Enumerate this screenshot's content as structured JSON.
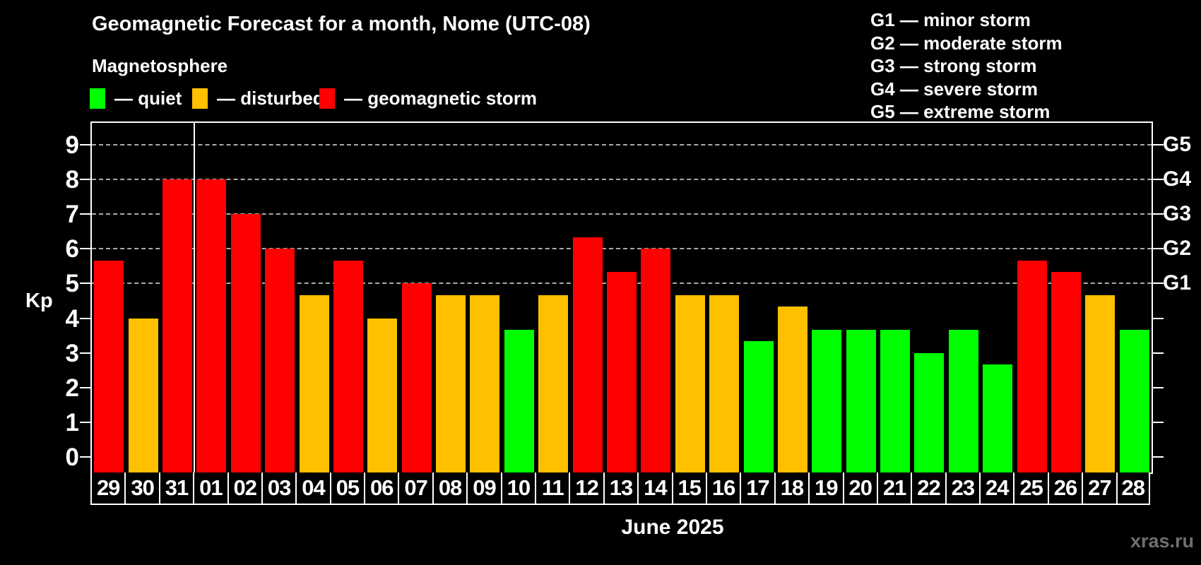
{
  "header": {
    "title": "Geomagnetic Forecast for a month, Nome (UTC-08)",
    "subtitle": "Magnetosphere"
  },
  "legend": {
    "items": [
      {
        "label": "— quiet",
        "level": "quiet",
        "color": "#00ff00"
      },
      {
        "label": "— disturbed",
        "level": "disturbed",
        "color": "#ffc000"
      },
      {
        "label": "— geomagnetic storm",
        "level": "storm",
        "color": "#ff0000"
      }
    ]
  },
  "g_scale_legend": {
    "lines": [
      "G1 — minor storm",
      "G2 — moderate storm",
      "G3 — strong storm",
      "G4 — severe storm",
      "G5 — extreme storm"
    ]
  },
  "chart_data": {
    "type": "bar",
    "title": "Geomagnetic Forecast for a month, Nome (UTC-08)",
    "subtitle": "Magnetosphere",
    "xlabel": "June 2025",
    "ylabel": "Kp",
    "ylim": [
      0,
      9
    ],
    "yticks": [
      0,
      1,
      2,
      3,
      4,
      5,
      6,
      7,
      8,
      9
    ],
    "gridlines_at": [
      5,
      6,
      7,
      8,
      9
    ],
    "grid": "dashed horizontal lines at storm levels only",
    "legend_position": "top",
    "right_axis": {
      "labels": [
        "G1",
        "G2",
        "G3",
        "G4",
        "G5"
      ],
      "positions": [
        5,
        6,
        7,
        8,
        9
      ]
    },
    "month_separator_after_index": 2,
    "categories": [
      "29",
      "30",
      "31",
      "01",
      "02",
      "03",
      "04",
      "05",
      "06",
      "07",
      "08",
      "09",
      "10",
      "11",
      "12",
      "13",
      "14",
      "15",
      "16",
      "17",
      "18",
      "19",
      "20",
      "21",
      "22",
      "23",
      "24",
      "25",
      "26",
      "27",
      "28"
    ],
    "values": [
      5.67,
      4,
      8,
      8,
      7,
      6,
      4.67,
      5.67,
      4,
      5,
      4.67,
      4.67,
      3.67,
      4.67,
      6.33,
      5.33,
      6,
      4.67,
      4.67,
      3.33,
      4.33,
      3.67,
      3.67,
      3.67,
      3,
      3.67,
      2.67,
      5.67,
      5.33,
      4.67,
      3.67
    ],
    "levels": [
      "storm",
      "disturbed",
      "storm",
      "storm",
      "storm",
      "storm",
      "disturbed",
      "storm",
      "disturbed",
      "storm",
      "disturbed",
      "disturbed",
      "quiet",
      "disturbed",
      "storm",
      "storm",
      "storm",
      "disturbed",
      "disturbed",
      "quiet",
      "disturbed",
      "quiet",
      "quiet",
      "quiet",
      "quiet",
      "quiet",
      "quiet",
      "storm",
      "storm",
      "disturbed",
      "quiet"
    ],
    "colors": {
      "quiet": "#00ff00",
      "disturbed": "#ffc000",
      "storm": "#ff0000"
    }
  },
  "footer": {
    "xlabel": "June 2025",
    "watermark": "xras.ru"
  }
}
